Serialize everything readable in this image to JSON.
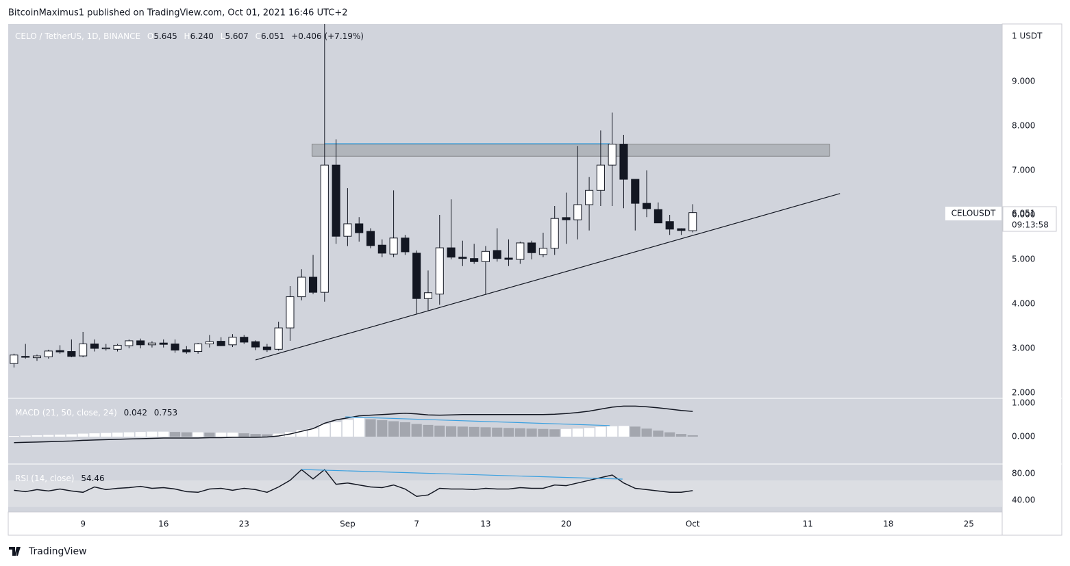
{
  "header": "BitcoinMaximus1 published on TradingView.com, Oct 01, 2021 16:46 UTC+2",
  "footer": "TradingView",
  "chart_data": [
    {
      "type": "candlestick",
      "legend": {
        "symbol": "CELO / TetherUS, 1D, BINANCE",
        "ohlc": [
          {
            "label": "O",
            "value": "5.645"
          },
          {
            "label": "H",
            "value": "6.240"
          },
          {
            "label": "L",
            "value": "5.607"
          },
          {
            "label": "C",
            "value": "6.051"
          }
        ],
        "change": "+0.406 (+7.19%)"
      },
      "axis_unit": "1 USDT",
      "price_tag": {
        "symbol": "CELOUSDT",
        "price": "6.051",
        "countdown": "09:13:58"
      },
      "up_color": "#ffffff",
      "down_color": "#131722",
      "xlim": [
        -0.5,
        85.9
      ],
      "xticks": [
        {
          "value": 6,
          "label": "9"
        },
        {
          "value": 13,
          "label": "16"
        },
        {
          "value": 20,
          "label": "23"
        },
        {
          "value": 29,
          "label": "Sep"
        },
        {
          "value": 35,
          "label": "7"
        },
        {
          "value": 41,
          "label": "13"
        },
        {
          "value": 48,
          "label": "20"
        },
        {
          "value": 59,
          "label": "Oct"
        },
        {
          "value": 69,
          "label": "11"
        },
        {
          "value": 76,
          "label": "18"
        },
        {
          "value": 83,
          "label": "25"
        }
      ],
      "ylim": [
        1.877,
        10.292
      ],
      "yticks": [
        {
          "value": 2,
          "label": "2.000"
        },
        {
          "value": 3,
          "label": "3.000"
        },
        {
          "value": 4,
          "label": "4.000"
        },
        {
          "value": 5,
          "label": "5.000"
        },
        {
          "value": 6,
          "label": "6.000"
        },
        {
          "value": 7,
          "label": "7.000"
        },
        {
          "value": 8,
          "label": "8.000"
        },
        {
          "value": 9,
          "label": "9.000"
        }
      ],
      "open": [
        2.66,
        2.82,
        2.79,
        2.81,
        2.95,
        2.93,
        2.83,
        3.1,
        2.99,
        2.98,
        3.06,
        3.17,
        3.08,
        3.12,
        3.1,
        2.97,
        2.93,
        3.1,
        3.16,
        3.08,
        3.25,
        3.15,
        3.03,
        2.98,
        3.46,
        4.16,
        4.6,
        4.26,
        7.12,
        5.52,
        5.8,
        5.63,
        5.32,
        5.12,
        5.48,
        5.14,
        4.12,
        4.22,
        5.26,
        5.05,
        5.02,
        4.95,
        5.2,
        5.03,
        5.0,
        5.37,
        5.11,
        5.25,
        5.94,
        5.89,
        6.23,
        6.55,
        7.12,
        7.59,
        6.8,
        6.26,
        6.12,
        5.85,
        5.69,
        5.645
      ],
      "high": [
        2.88,
        3.1,
        2.86,
        2.97,
        3.07,
        3.2,
        3.37,
        3.2,
        3.1,
        3.1,
        3.2,
        3.22,
        3.16,
        3.2,
        3.2,
        3.05,
        3.12,
        3.3,
        3.25,
        3.32,
        3.3,
        3.18,
        3.1,
        3.6,
        4.4,
        4.78,
        5.1,
        10.6,
        7.7,
        6.6,
        5.95,
        5.7,
        5.45,
        6.55,
        5.55,
        5.2,
        4.75,
        6.0,
        6.35,
        5.42,
        5.35,
        5.3,
        5.7,
        5.45,
        5.4,
        5.42,
        5.6,
        6.2,
        6.5,
        7.55,
        6.85,
        7.9,
        8.3,
        7.8,
        6.8,
        7.0,
        6.28,
        6.0,
        5.7,
        6.24
      ],
      "low": [
        2.57,
        2.77,
        2.72,
        2.77,
        2.88,
        2.8,
        2.8,
        2.93,
        2.95,
        2.93,
        3.0,
        3.0,
        3.02,
        3.02,
        2.9,
        2.88,
        2.88,
        3.02,
        3.05,
        3.03,
        3.1,
        2.96,
        2.92,
        2.95,
        3.17,
        4.08,
        4.22,
        4.05,
        5.35,
        5.3,
        5.4,
        5.25,
        5.05,
        5.05,
        5.1,
        3.78,
        3.85,
        3.98,
        5.0,
        4.85,
        4.9,
        4.22,
        4.95,
        4.85,
        4.9,
        5.0,
        5.05,
        5.1,
        5.35,
        5.45,
        5.65,
        6.2,
        6.2,
        6.15,
        5.65,
        5.95,
        5.82,
        5.55,
        5.55,
        5.607
      ],
      "close": [
        2.85,
        2.8,
        2.83,
        2.94,
        2.92,
        2.82,
        3.1,
        3.0,
        3.01,
        3.07,
        3.17,
        3.08,
        3.12,
        3.09,
        2.96,
        2.92,
        3.1,
        3.15,
        3.06,
        3.25,
        3.14,
        3.03,
        2.97,
        3.46,
        4.16,
        4.6,
        4.26,
        7.12,
        5.52,
        5.8,
        5.6,
        5.31,
        5.14,
        5.48,
        5.17,
        4.12,
        4.25,
        5.26,
        5.05,
        5.02,
        4.95,
        5.18,
        5.02,
        5.0,
        5.37,
        5.15,
        5.25,
        5.92,
        5.89,
        6.23,
        6.55,
        7.12,
        7.59,
        6.8,
        6.26,
        6.14,
        5.82,
        5.68,
        5.65,
        6.051
      ],
      "zone": {
        "x": [
          25.9,
          70.9
        ],
        "y": [
          7.32,
          7.59
        ],
        "color": "#a9acb3"
      },
      "level_line": {
        "x": [
          27,
          51.8
        ],
        "y": [
          7.6,
          7.6
        ],
        "color": "#3aa0e0"
      },
      "trendline": {
        "x": [
          21.0,
          71.8
        ],
        "y": [
          2.74,
          6.48
        ],
        "color": "#131722"
      }
    },
    {
      "type": "macd",
      "legend": {
        "name": "MACD (21, 50, close, 24)",
        "values": [
          "0.042",
          "0.753"
        ]
      },
      "ylim": [
        -0.816,
        1.143
      ],
      "yticks": [
        {
          "value": 0,
          "label": "0.000"
        },
        {
          "value": 1,
          "label": "1.000"
        }
      ],
      "rising_color": "#ffffff",
      "falling_color": "#a3a6ae",
      "histogram": [
        0.02,
        0.03,
        0.04,
        0.05,
        0.06,
        0.07,
        0.09,
        0.1,
        0.11,
        0.12,
        0.13,
        0.14,
        0.15,
        0.15,
        0.14,
        0.13,
        0.13,
        0.12,
        0.12,
        0.12,
        0.1,
        0.08,
        0.07,
        0.09,
        0.14,
        0.2,
        0.24,
        0.38,
        0.43,
        0.5,
        0.55,
        0.52,
        0.49,
        0.46,
        0.43,
        0.38,
        0.35,
        0.33,
        0.31,
        0.3,
        0.29,
        0.28,
        0.27,
        0.26,
        0.25,
        0.24,
        0.23,
        0.22,
        0.23,
        0.24,
        0.26,
        0.29,
        0.31,
        0.32,
        0.3,
        0.24,
        0.18,
        0.13,
        0.08,
        0.042
      ],
      "macd": [
        -0.18,
        -0.17,
        -0.16,
        -0.15,
        -0.14,
        -0.13,
        -0.11,
        -0.1,
        -0.09,
        -0.08,
        -0.07,
        -0.06,
        -0.05,
        -0.04,
        -0.04,
        -0.04,
        -0.04,
        -0.03,
        -0.03,
        -0.02,
        -0.02,
        -0.02,
        -0.01,
        0.02,
        0.08,
        0.16,
        0.24,
        0.4,
        0.5,
        0.56,
        0.62,
        0.64,
        0.66,
        0.68,
        0.7,
        0.68,
        0.65,
        0.64,
        0.65,
        0.66,
        0.66,
        0.66,
        0.66,
        0.66,
        0.66,
        0.66,
        0.66,
        0.67,
        0.69,
        0.72,
        0.76,
        0.82,
        0.88,
        0.91,
        0.91,
        0.89,
        0.86,
        0.82,
        0.78,
        0.753
      ],
      "line_color": "#131722",
      "divergence": {
        "x": [
          28.8,
          51.8
        ],
        "y": [
          0.59,
          0.33
        ],
        "color": "#3aa0e0"
      }
    },
    {
      "type": "rsi",
      "legend": {
        "name": "RSI (14, close)",
        "values": [
          "54.46"
        ]
      },
      "ylim": [
        22.6,
        94.4
      ],
      "yticks": [
        {
          "value": 40,
          "label": "40.00"
        },
        {
          "value": 80,
          "label": "80.00"
        }
      ],
      "band": [
        30,
        70
      ],
      "band_color": "#dcdee3",
      "rsi": [
        55,
        53,
        56,
        54,
        57,
        54,
        52,
        60,
        56,
        58,
        59,
        61,
        58,
        59,
        57,
        53,
        52,
        57,
        58,
        55,
        58,
        56,
        52,
        60,
        70,
        86,
        72,
        86,
        64,
        66,
        63,
        60,
        59,
        63,
        57,
        46,
        48,
        58,
        57,
        57,
        56,
        58,
        57,
        57,
        59,
        58,
        58,
        63,
        62,
        66,
        70,
        74,
        78,
        66,
        58,
        56,
        54,
        52,
        52,
        54.46
      ],
      "line_color": "#131722",
      "divergence": {
        "x": [
          25.0,
          52.9
        ],
        "y": [
          86.2,
          71.8
        ],
        "color": "#3aa0e0"
      }
    }
  ]
}
